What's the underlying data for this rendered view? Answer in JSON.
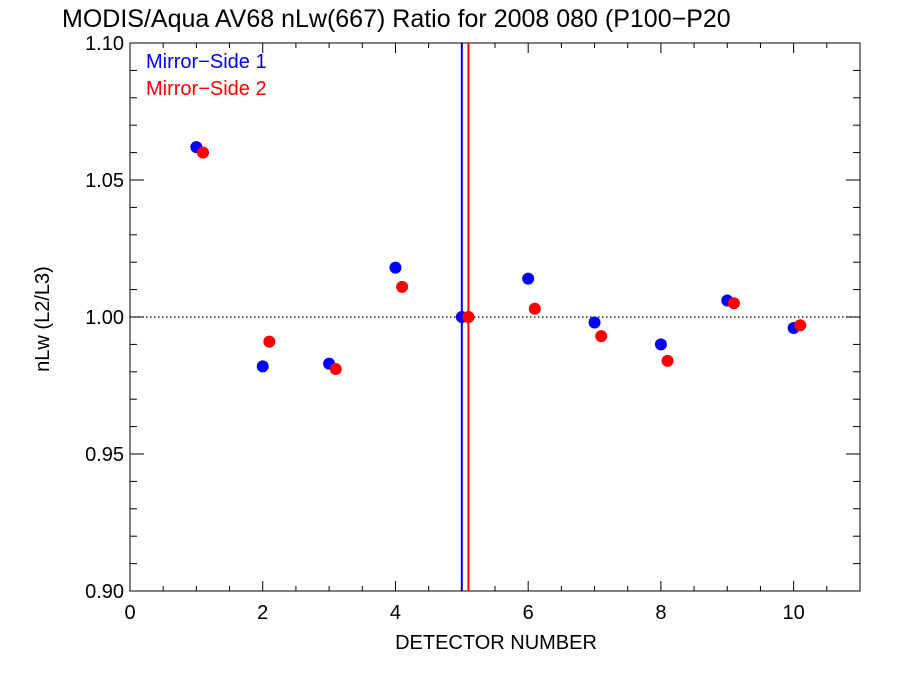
{
  "chart_data": {
    "type": "scatter",
    "title": "MODIS/Aqua AV68 nLw(667) Ratio for 2008 080 (P100−P20",
    "xlabel": "DETECTOR NUMBER",
    "ylabel": "nLw (L2/L3)",
    "xlim": [
      0,
      11
    ],
    "ylim": [
      0.9,
      1.1
    ],
    "xticks": [
      0,
      2,
      4,
      6,
      8,
      10
    ],
    "yticks": [
      0.9,
      0.95,
      1.0,
      1.05,
      1.1
    ],
    "xtick_labels": [
      "0",
      "2",
      "4",
      "6",
      "8",
      "10"
    ],
    "ytick_labels": [
      "0.90",
      "0.95",
      "1.00",
      "1.05",
      "1.10"
    ],
    "x_minor_step": 0.5,
    "y_minor_step": 0.01,
    "reference_line": {
      "y": 1.0,
      "style": "dotted",
      "color": "#000000"
    },
    "vertical_lines": [
      {
        "x": 5.0,
        "color": "#0000ff"
      },
      {
        "x": 5.1,
        "color": "#ff0000"
      }
    ],
    "legend_position": "top-left",
    "series": [
      {
        "name": "Mirror−Side 1",
        "color": "#0000ff",
        "x": [
          1,
          2,
          3,
          4,
          5,
          6,
          7,
          8,
          9,
          10
        ],
        "y": [
          1.062,
          0.982,
          0.983,
          1.018,
          1.0,
          1.014,
          0.998,
          0.99,
          1.006,
          0.996
        ]
      },
      {
        "name": "Mirror−Side 2",
        "color": "#ff0000",
        "x": [
          1.1,
          2.1,
          3.1,
          4.1,
          5.1,
          6.1,
          7.1,
          8.1,
          9.1,
          10.1
        ],
        "y": [
          1.06,
          0.991,
          0.981,
          1.011,
          1.0,
          1.003,
          0.993,
          0.984,
          1.005,
          0.997
        ]
      }
    ]
  }
}
